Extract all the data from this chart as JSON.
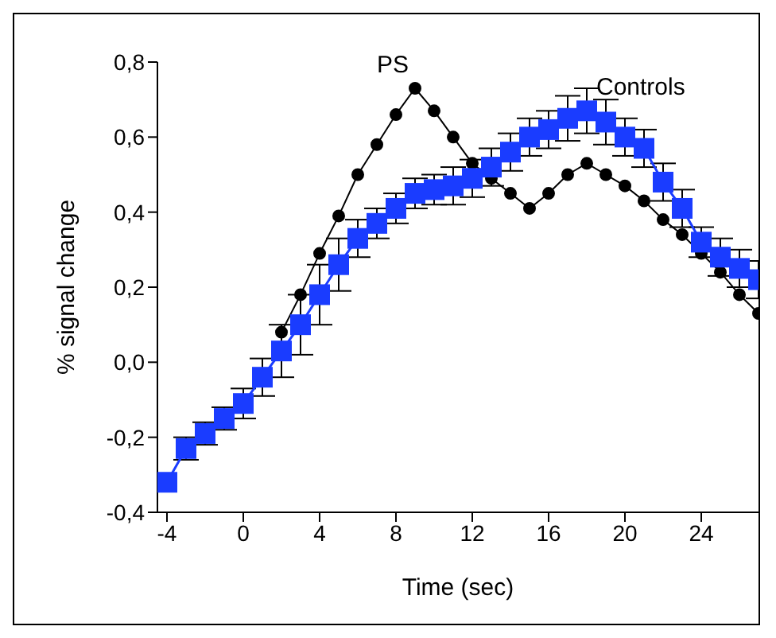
{
  "chart_data": {
    "type": "line",
    "xlabel": "Time (sec)",
    "ylabel": "% signal change",
    "x": [
      -4,
      -3,
      -2,
      -1,
      0,
      1,
      2,
      3,
      4,
      5,
      6,
      7,
      8,
      9,
      10,
      11,
      12,
      13,
      14,
      15,
      16,
      17,
      18,
      19,
      20,
      21,
      22,
      23,
      24,
      25,
      26,
      27
    ],
    "series": [
      {
        "name": "PS",
        "color": "#000000",
        "marker": "circle",
        "values": [
          null,
          null,
          null,
          null,
          null,
          null,
          0.08,
          0.18,
          0.29,
          0.39,
          0.5,
          0.58,
          0.66,
          0.73,
          0.67,
          0.6,
          0.53,
          0.49,
          0.45,
          0.41,
          0.45,
          0.5,
          0.53,
          0.5,
          0.47,
          0.43,
          0.38,
          0.34,
          0.29,
          0.24,
          0.18,
          0.13
        ]
      },
      {
        "name": "Controls",
        "color": "#1a3cff",
        "marker": "square",
        "values": [
          -0.32,
          -0.23,
          -0.19,
          -0.15,
          -0.11,
          -0.04,
          0.03,
          0.1,
          0.18,
          0.26,
          0.33,
          0.37,
          0.41,
          0.45,
          0.46,
          0.47,
          0.49,
          0.52,
          0.56,
          0.6,
          0.62,
          0.65,
          0.67,
          0.64,
          0.6,
          0.57,
          0.48,
          0.41,
          0.32,
          0.28,
          0.25,
          0.22
        ],
        "errors": [
          null,
          0.03,
          0.03,
          0.03,
          0.04,
          0.05,
          0.07,
          0.08,
          0.08,
          0.07,
          0.05,
          0.04,
          0.04,
          0.04,
          0.04,
          0.05,
          0.05,
          0.05,
          0.05,
          0.05,
          0.05,
          0.06,
          0.06,
          0.06,
          0.05,
          0.05,
          0.05,
          0.05,
          0.04,
          0.05,
          0.05,
          0.05
        ]
      }
    ],
    "xlim": [
      -4.5,
      27
    ],
    "xticks": [
      -4,
      0,
      4,
      8,
      12,
      16,
      20,
      24
    ],
    "ylim": [
      -0.4,
      0.8
    ],
    "yticks": [
      {
        "value": -0.4,
        "label": "-0,4"
      },
      {
        "value": -0.2,
        "label": "-0,2"
      },
      {
        "value": 0,
        "label": "0,0"
      },
      {
        "value": 0.2,
        "label": "0,2"
      },
      {
        "value": 0.4,
        "label": "0,4"
      },
      {
        "value": 0.6,
        "label": "0,6"
      },
      {
        "value": 0.8,
        "label": "0,8"
      }
    ],
    "grid": false,
    "legend": false
  }
}
